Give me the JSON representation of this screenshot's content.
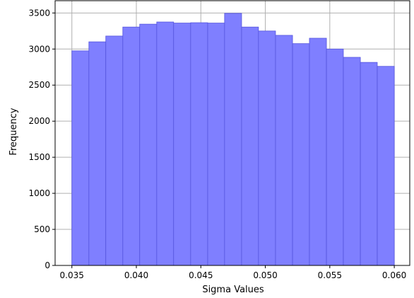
{
  "chart_data": {
    "type": "bar",
    "title": "",
    "xlabel": "Sigma Values",
    "ylabel": "Frequency",
    "xlim": [
      0.0337,
      0.0612
    ],
    "ylim": [
      0,
      3670
    ],
    "grid": true,
    "bin_edges": [
      0.035,
      0.03632,
      0.03763,
      0.03895,
      0.04026,
      0.04158,
      0.04289,
      0.04421,
      0.04553,
      0.04684,
      0.04816,
      0.04947,
      0.05079,
      0.05211,
      0.05342,
      0.05474,
      0.05605,
      0.05737,
      0.05868,
      0.06
    ],
    "values": [
      2975,
      3100,
      3180,
      3305,
      3345,
      3375,
      3360,
      3365,
      3360,
      3495,
      3305,
      3250,
      3190,
      3075,
      3150,
      3000,
      2885,
      2815,
      2760
    ],
    "x_ticks": [
      0.035,
      0.04,
      0.045,
      0.05,
      0.055,
      0.06
    ],
    "x_tick_labels": [
      "0.035",
      "0.040",
      "0.045",
      "0.050",
      "0.055",
      "0.060"
    ],
    "y_ticks": [
      0,
      500,
      1000,
      1500,
      2000,
      2500,
      3000,
      3500
    ],
    "y_tick_labels": [
      "0",
      "500",
      "1000",
      "1500",
      "2000",
      "2500",
      "3000",
      "3500"
    ],
    "bar_color": "#7f7fff",
    "edge_color": "#5555dd",
    "grid_color": "#b0b0b0"
  }
}
